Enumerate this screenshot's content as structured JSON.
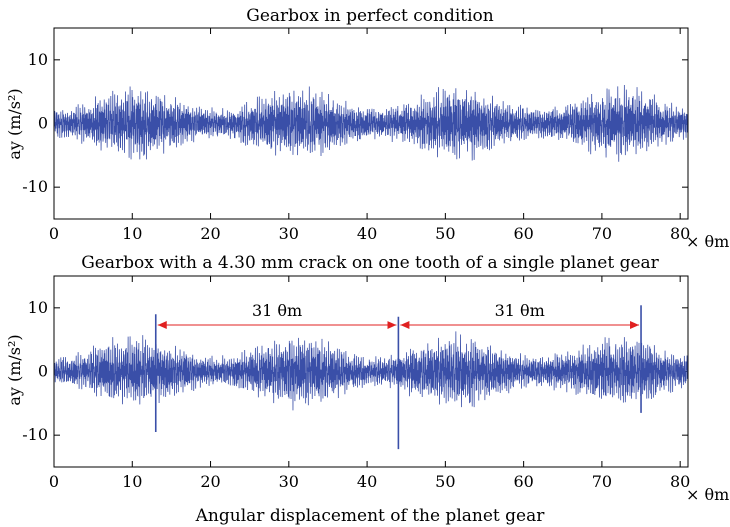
{
  "colors": {
    "signal": "#3a4fa8",
    "arrow": "#e02020",
    "axis": "#000000"
  },
  "x_unit": "× θm",
  "xlabel": "Angular displacement of the planet gear",
  "chart_data": [
    {
      "type": "line",
      "title": "Gearbox in perfect condition",
      "ylabel": "ay (m/s²)",
      "xlim": [
        0,
        81
      ],
      "ylim": [
        -15,
        15
      ],
      "xticks": [
        0,
        10,
        20,
        30,
        40,
        50,
        60,
        70,
        80
      ],
      "yticks": [
        10,
        0,
        -10
      ],
      "ytick_labels": [
        "10",
        "0",
        "-10"
      ],
      "envelope": {
        "period": 20.5,
        "min_amp": 2.4,
        "max_amp": 5.8,
        "peak_at": 10.5
      },
      "impulses": []
    },
    {
      "type": "line",
      "title": "Gearbox with a 4.30 mm crack on one tooth of a single planet gear",
      "ylabel": "ay (m/s²)",
      "xlim": [
        0,
        81
      ],
      "ylim": [
        -15,
        15
      ],
      "xticks": [
        0,
        10,
        20,
        30,
        40,
        50,
        60,
        70,
        80
      ],
      "yticks": [
        10,
        0,
        -10
      ],
      "ytick_labels": [
        "10",
        "0",
        "-10"
      ],
      "envelope": {
        "period": 20.5,
        "min_amp": 2.4,
        "max_amp": 5.8,
        "peak_at": 10.5
      },
      "impulses": [
        {
          "x": 13,
          "max": 9.0,
          "min": -9.5
        },
        {
          "x": 44,
          "max": 8.6,
          "min": -12.2
        },
        {
          "x": 75,
          "max": 10.4,
          "min": -6.5
        }
      ],
      "annotations": [
        {
          "text": "31 θm",
          "from": 13,
          "to": 44,
          "y": 7.3
        },
        {
          "text": "31 θm",
          "from": 44,
          "to": 75,
          "y": 7.3
        }
      ]
    }
  ]
}
